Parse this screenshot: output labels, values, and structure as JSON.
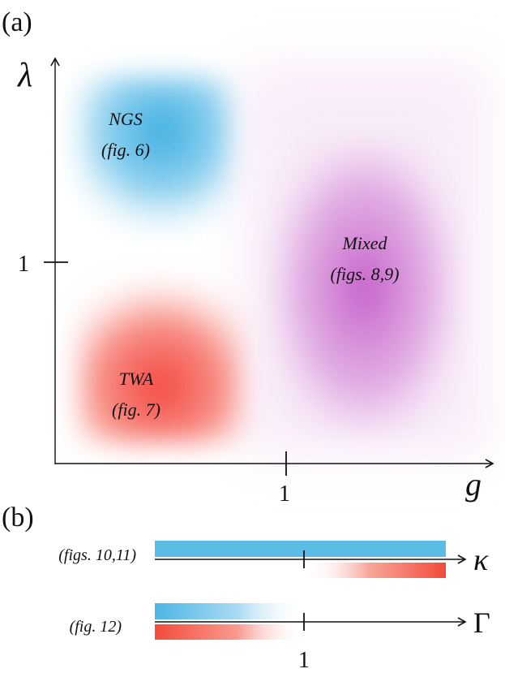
{
  "panel_a": {
    "label": "(a)",
    "y_axis_label": "λ",
    "x_axis_label": "g",
    "y_tick_label": "1",
    "x_tick_label": "1",
    "regions": {
      "ngs": {
        "name": "NGS",
        "ref": "(fig. 6)",
        "color": "#3aaee0"
      },
      "twa": {
        "name": "TWA",
        "ref": "(fig. 7)",
        "color": "#f0433a"
      },
      "mixed": {
        "name": "Mixed",
        "ref": "(figs. 8,9)",
        "color": "#c765c8"
      }
    }
  },
  "panel_b": {
    "label": "(b)",
    "rows": [
      {
        "ref": "(figs. 10,11)",
        "axis_label": "κ"
      },
      {
        "ref": "(fig. 12)",
        "axis_label": "Γ"
      }
    ],
    "tick_label": "1",
    "colors": {
      "blue": "#5bbde6",
      "red": "#f2503f"
    }
  }
}
